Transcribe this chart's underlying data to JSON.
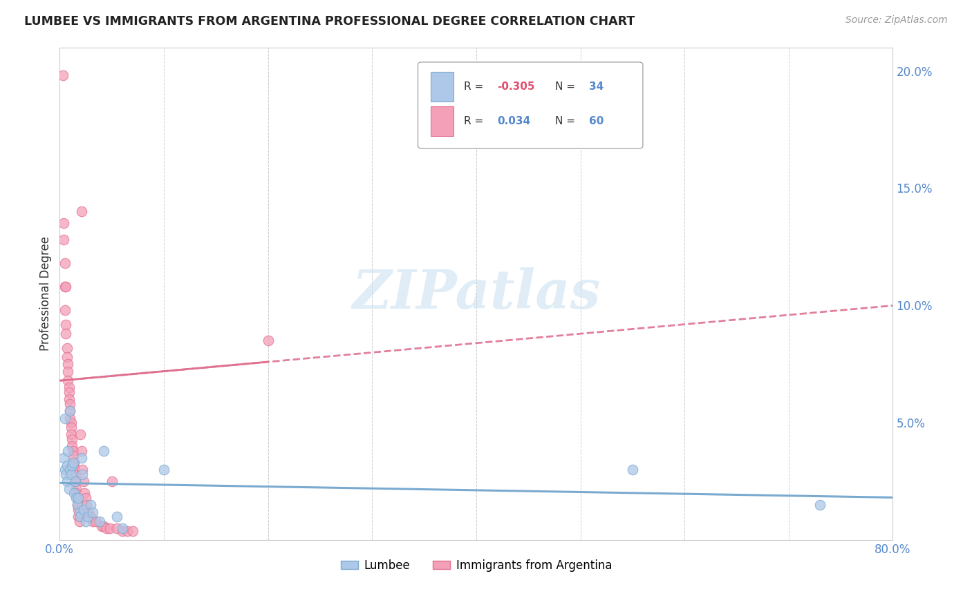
{
  "title": "LUMBEE VS IMMIGRANTS FROM ARGENTINA PROFESSIONAL DEGREE CORRELATION CHART",
  "source": "Source: ZipAtlas.com",
  "ylabel": "Professional Degree",
  "xlim": [
    0.0,
    0.8
  ],
  "ylim": [
    0.0,
    0.21
  ],
  "xticks": [
    0.0,
    0.1,
    0.2,
    0.3,
    0.4,
    0.5,
    0.6,
    0.7,
    0.8
  ],
  "xticklabels": [
    "0.0%",
    "",
    "",
    "",
    "",
    "",
    "",
    "",
    "80.0%"
  ],
  "yticks_right": [
    0.0,
    0.05,
    0.1,
    0.15,
    0.2
  ],
  "yticklabels_right": [
    "",
    "5.0%",
    "10.0%",
    "15.0%",
    "20.0%"
  ],
  "legend_R1": "-0.305",
  "legend_N1": "34",
  "legend_R2": "0.034",
  "legend_N2": "60",
  "watermark": "ZIPatlas",
  "lumbee_color": "#adc8e8",
  "argentina_color": "#f4a0b8",
  "lumbee_edge_color": "#7aaad0",
  "argentina_edge_color": "#e07090",
  "lumbee_line_color": "#7aaad0",
  "argentina_line_color": "#e07090",
  "lumbee_scatter": [
    [
      0.004,
      0.035
    ],
    [
      0.005,
      0.03
    ],
    [
      0.005,
      0.052
    ],
    [
      0.006,
      0.028
    ],
    [
      0.007,
      0.032
    ],
    [
      0.007,
      0.025
    ],
    [
      0.008,
      0.038
    ],
    [
      0.009,
      0.022
    ],
    [
      0.01,
      0.055
    ],
    [
      0.01,
      0.03
    ],
    [
      0.011,
      0.028
    ],
    [
      0.012,
      0.032
    ],
    [
      0.013,
      0.033
    ],
    [
      0.014,
      0.02
    ],
    [
      0.015,
      0.025
    ],
    [
      0.016,
      0.018
    ],
    [
      0.017,
      0.015
    ],
    [
      0.018,
      0.018
    ],
    [
      0.019,
      0.012
    ],
    [
      0.02,
      0.01
    ],
    [
      0.021,
      0.035
    ],
    [
      0.022,
      0.028
    ],
    [
      0.023,
      0.013
    ],
    [
      0.025,
      0.008
    ],
    [
      0.027,
      0.01
    ],
    [
      0.03,
      0.015
    ],
    [
      0.032,
      0.012
    ],
    [
      0.038,
      0.008
    ],
    [
      0.042,
      0.038
    ],
    [
      0.055,
      0.01
    ],
    [
      0.06,
      0.005
    ],
    [
      0.1,
      0.03
    ],
    [
      0.55,
      0.03
    ],
    [
      0.73,
      0.015
    ]
  ],
  "argentina_scatter": [
    [
      0.003,
      0.198
    ],
    [
      0.004,
      0.135
    ],
    [
      0.004,
      0.128
    ],
    [
      0.005,
      0.118
    ],
    [
      0.005,
      0.108
    ],
    [
      0.005,
      0.098
    ],
    [
      0.006,
      0.092
    ],
    [
      0.006,
      0.088
    ],
    [
      0.007,
      0.082
    ],
    [
      0.007,
      0.078
    ],
    [
      0.008,
      0.075
    ],
    [
      0.008,
      0.072
    ],
    [
      0.008,
      0.068
    ],
    [
      0.009,
      0.065
    ],
    [
      0.009,
      0.063
    ],
    [
      0.009,
      0.06
    ],
    [
      0.01,
      0.058
    ],
    [
      0.01,
      0.055
    ],
    [
      0.01,
      0.052
    ],
    [
      0.011,
      0.05
    ],
    [
      0.011,
      0.048
    ],
    [
      0.011,
      0.045
    ],
    [
      0.012,
      0.043
    ],
    [
      0.012,
      0.04
    ],
    [
      0.013,
      0.038
    ],
    [
      0.013,
      0.036
    ],
    [
      0.014,
      0.033
    ],
    [
      0.014,
      0.031
    ],
    [
      0.015,
      0.028
    ],
    [
      0.015,
      0.025
    ],
    [
      0.016,
      0.022
    ],
    [
      0.016,
      0.02
    ],
    [
      0.017,
      0.018
    ],
    [
      0.017,
      0.015
    ],
    [
      0.018,
      0.013
    ],
    [
      0.018,
      0.01
    ],
    [
      0.019,
      0.008
    ],
    [
      0.02,
      0.045
    ],
    [
      0.021,
      0.038
    ],
    [
      0.022,
      0.03
    ],
    [
      0.023,
      0.025
    ],
    [
      0.024,
      0.02
    ],
    [
      0.025,
      0.018
    ],
    [
      0.026,
      0.015
    ],
    [
      0.028,
      0.012
    ],
    [
      0.03,
      0.01
    ],
    [
      0.032,
      0.008
    ],
    [
      0.035,
      0.008
    ],
    [
      0.04,
      0.006
    ],
    [
      0.042,
      0.006
    ],
    [
      0.045,
      0.005
    ],
    [
      0.048,
      0.005
    ],
    [
      0.05,
      0.025
    ],
    [
      0.055,
      0.005
    ],
    [
      0.06,
      0.004
    ],
    [
      0.065,
      0.004
    ],
    [
      0.07,
      0.004
    ],
    [
      0.2,
      0.085
    ],
    [
      0.021,
      0.14
    ],
    [
      0.006,
      0.108
    ]
  ]
}
